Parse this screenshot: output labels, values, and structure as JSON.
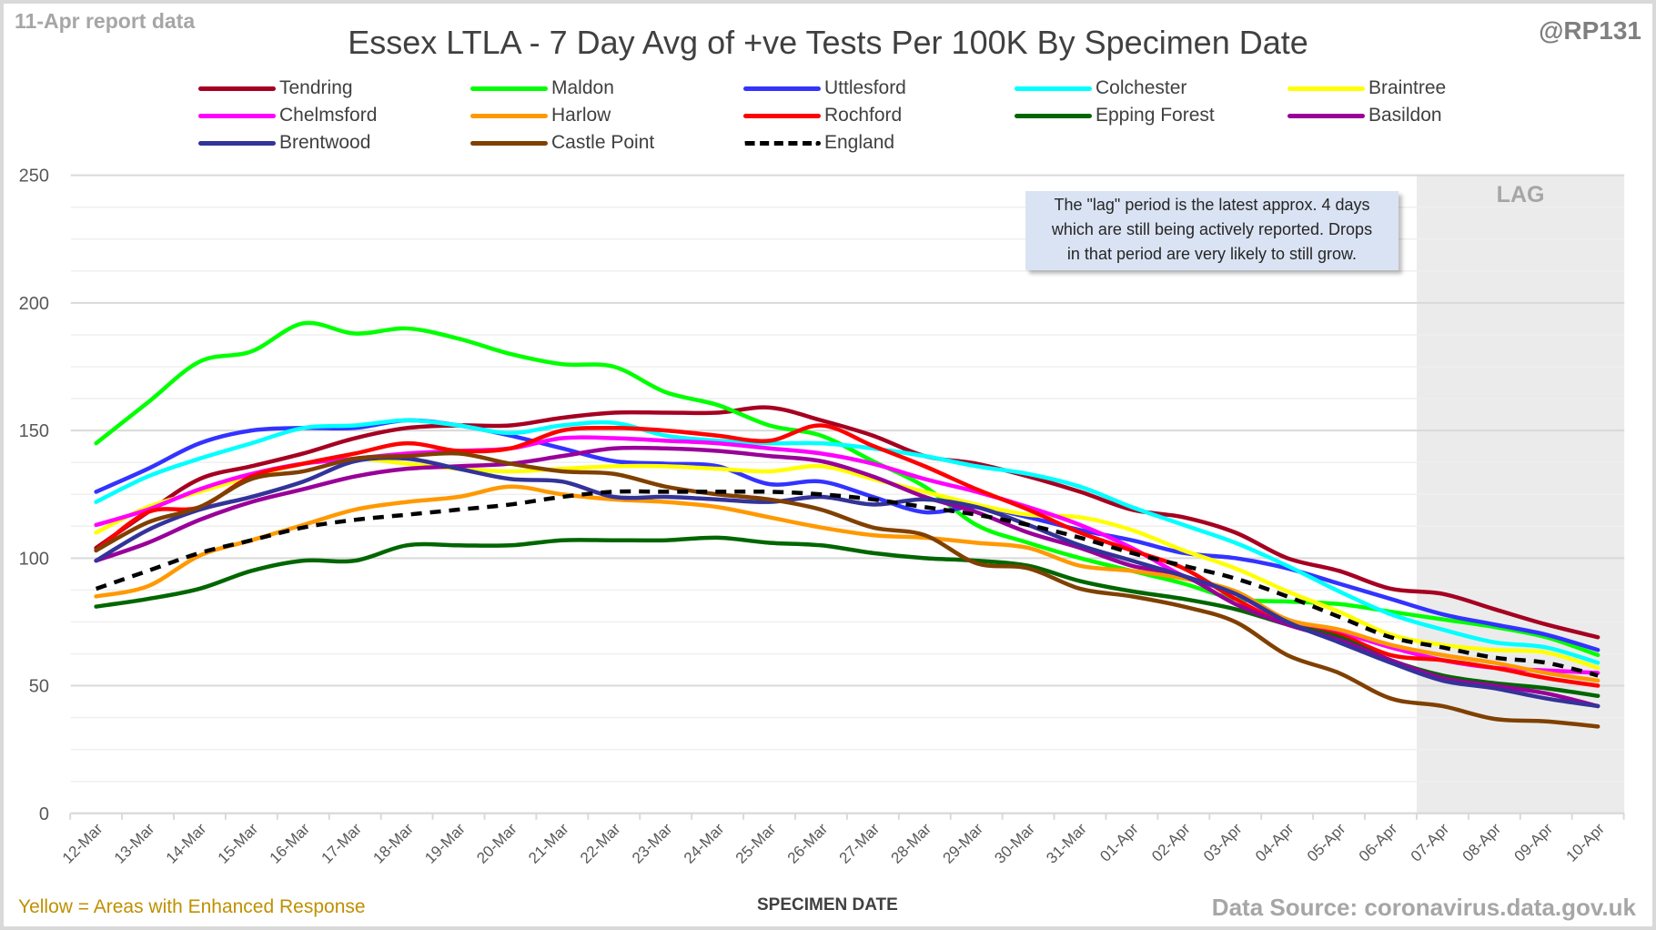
{
  "header": {
    "report_label": "11-Apr report data",
    "handle": "@RP131"
  },
  "footer": {
    "note": "Yellow = Areas with Enhanced Response",
    "source": "Data Source: coronavirus.data.gov.uk"
  },
  "annotation": {
    "lines": [
      "The \"lag\" period is the latest approx. 4 days",
      "which are still being actively reported.  Drops",
      "in that period are very likely to still grow."
    ]
  },
  "lag": {
    "label": "LAG",
    "start_category": "07-Apr",
    "end_category": "10-Apr",
    "color": "#ebebeb"
  },
  "chart_data": {
    "type": "line",
    "title": "Essex LTLA - 7 Day Avg of +ve Tests Per 100K By Specimen Date",
    "xlabel": "SPECIMEN DATE",
    "ylabel": "",
    "ylim": [
      0,
      250
    ],
    "yticks": [
      0,
      50,
      100,
      150,
      200,
      250
    ],
    "minor_grid_step": 12.5,
    "grid": true,
    "legend_position": "top",
    "categories": [
      "12-Mar",
      "13-Mar",
      "14-Mar",
      "15-Mar",
      "16-Mar",
      "17-Mar",
      "18-Mar",
      "19-Mar",
      "20-Mar",
      "21-Mar",
      "22-Mar",
      "23-Mar",
      "24-Mar",
      "25-Mar",
      "26-Mar",
      "27-Mar",
      "28-Mar",
      "29-Mar",
      "30-Mar",
      "31-Mar",
      "01-Apr",
      "02-Apr",
      "03-Apr",
      "04-Apr",
      "05-Apr",
      "06-Apr",
      "07-Apr",
      "08-Apr",
      "09-Apr",
      "10-Apr"
    ],
    "series": [
      {
        "name": "Tendring",
        "color": "#a50021",
        "dashed": false,
        "values": [
          104,
          118,
          131,
          136,
          141,
          147,
          151,
          152,
          152,
          155,
          157,
          157,
          157,
          159,
          154,
          148,
          140,
          137,
          132,
          126,
          119,
          116,
          110,
          100,
          95,
          88,
          86,
          80,
          74,
          69
        ]
      },
      {
        "name": "Maldon",
        "color": "#00ff00",
        "dashed": false,
        "values": [
          145,
          161,
          177,
          181,
          192,
          188,
          190,
          186,
          180,
          176,
          175,
          165,
          160,
          152,
          148,
          138,
          128,
          113,
          106,
          100,
          95,
          90,
          84,
          83,
          82,
          79,
          76,
          73,
          69,
          62
        ]
      },
      {
        "name": "Uttlesford",
        "color": "#3333ff",
        "dashed": false,
        "values": [
          126,
          135,
          145,
          150,
          151,
          151,
          154,
          152,
          148,
          143,
          138,
          137,
          136,
          129,
          130,
          124,
          118,
          120,
          116,
          111,
          107,
          102,
          100,
          96,
          90,
          84,
          78,
          74,
          70,
          64
        ]
      },
      {
        "name": "Colchester",
        "color": "#00ffff",
        "dashed": false,
        "values": [
          122,
          132,
          139,
          145,
          151,
          152,
          154,
          152,
          149,
          152,
          153,
          148,
          146,
          145,
          145,
          143,
          140,
          136,
          133,
          128,
          120,
          113,
          106,
          97,
          87,
          78,
          72,
          67,
          65,
          59
        ]
      },
      {
        "name": "Braintree",
        "color": "#ffff00",
        "dashed": false,
        "values": [
          110,
          120,
          126,
          132,
          137,
          139,
          137,
          135,
          134,
          135,
          136,
          136,
          135,
          134,
          136,
          131,
          126,
          121,
          117,
          116,
          111,
          103,
          96,
          87,
          79,
          70,
          66,
          64,
          63,
          57
        ]
      },
      {
        "name": "Chelmsford",
        "color": "#ff00ff",
        "dashed": false,
        "values": [
          113,
          119,
          127,
          133,
          137,
          139,
          141,
          142,
          143,
          147,
          147,
          146,
          145,
          143,
          141,
          137,
          131,
          126,
          120,
          113,
          104,
          93,
          86,
          75,
          71,
          65,
          60,
          57,
          56,
          55
        ]
      },
      {
        "name": "Harlow",
        "color": "#ff9900",
        "dashed": false,
        "values": [
          85,
          89,
          101,
          107,
          113,
          119,
          122,
          124,
          128,
          125,
          123,
          122,
          120,
          116,
          112,
          109,
          108,
          106,
          104,
          97,
          95,
          92,
          87,
          76,
          72,
          66,
          62,
          59,
          55,
          52
        ]
      },
      {
        "name": "Rochford",
        "color": "#ff0000",
        "dashed": false,
        "values": [
          103,
          118,
          120,
          132,
          137,
          141,
          145,
          142,
          143,
          150,
          151,
          150,
          148,
          146,
          152,
          144,
          136,
          127,
          119,
          110,
          103,
          96,
          84,
          74,
          70,
          62,
          60,
          57,
          53,
          50
        ]
      },
      {
        "name": "Epping Forest",
        "color": "#006600",
        "dashed": false,
        "values": [
          81,
          84,
          88,
          95,
          99,
          99,
          105,
          105,
          105,
          107,
          107,
          107,
          108,
          106,
          105,
          102,
          100,
          99,
          97,
          91,
          87,
          84,
          80,
          74,
          69,
          60,
          54,
          51,
          49,
          46
        ]
      },
      {
        "name": "Basildon",
        "color": "#990099",
        "dashed": false,
        "values": [
          99,
          106,
          115,
          122,
          127,
          132,
          135,
          136,
          137,
          140,
          143,
          143,
          142,
          140,
          138,
          132,
          124,
          118,
          110,
          104,
          97,
          93,
          82,
          74,
          68,
          60,
          53,
          50,
          47,
          42
        ]
      },
      {
        "name": "Brentwood",
        "color": "#333399",
        "dashed": false,
        "values": [
          99,
          111,
          119,
          124,
          130,
          138,
          139,
          135,
          131,
          130,
          124,
          124,
          123,
          122,
          124,
          121,
          123,
          120,
          113,
          105,
          99,
          93,
          86,
          75,
          67,
          59,
          52,
          49,
          45,
          42
        ]
      },
      {
        "name": "Castle Point",
        "color": "#804000",
        "dashed": false,
        "values": [
          103,
          114,
          120,
          131,
          134,
          139,
          140,
          141,
          137,
          134,
          133,
          128,
          125,
          123,
          119,
          112,
          109,
          98,
          96,
          88,
          85,
          81,
          75,
          62,
          55,
          45,
          42,
          37,
          36,
          34
        ]
      },
      {
        "name": "England",
        "color": "#000000",
        "dashed": true,
        "values": [
          88,
          95,
          102,
          107,
          112,
          115,
          117,
          119,
          121,
          124,
          126,
          126,
          126,
          126,
          125,
          123,
          120,
          117,
          113,
          108,
          102,
          97,
          92,
          85,
          77,
          69,
          65,
          61,
          59,
          54
        ]
      }
    ]
  }
}
